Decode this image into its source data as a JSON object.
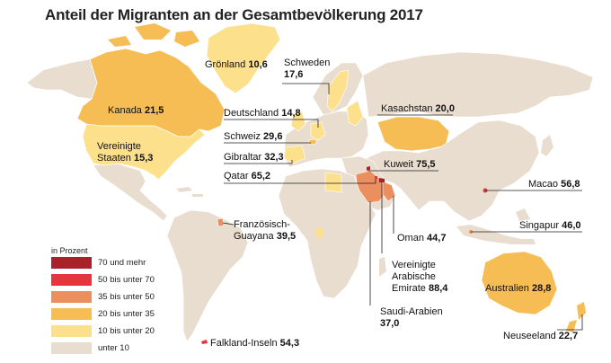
{
  "title": "Anteil der Migranten an der Gesamtbevölkerung 2017",
  "colors": {
    "ocean": "#ffffff",
    "c70": "#a9212b",
    "c50": "#e3363e",
    "c35": "#ec8f5e",
    "c20": "#f6bd55",
    "c10": "#fce08c",
    "c0": "#e9ddd0",
    "line": "#222222"
  },
  "legend": {
    "title": "in Prozent",
    "items": [
      {
        "label": "70 und mehr",
        "color": "#a9212b"
      },
      {
        "label": "50 bis unter 70",
        "color": "#e3363e"
      },
      {
        "label": "35 bis unter 50",
        "color": "#ec8f5e"
      },
      {
        "label": "20 bis unter 35",
        "color": "#f6bd55"
      },
      {
        "label": "10 bis unter 20",
        "color": "#fce08c"
      },
      {
        "label": "unter 10",
        "color": "#e9ddd0"
      }
    ]
  },
  "labels": {
    "groenland": {
      "name": "Grönland",
      "value": "10,6"
    },
    "schweden": {
      "name": "Schweden",
      "value": "17,6"
    },
    "kanada": {
      "name": "Kanada",
      "value": "21,5"
    },
    "deutschland": {
      "name": "Deutschland",
      "value": "14,8"
    },
    "kasachstan": {
      "name": "Kasachstan",
      "value": "20,0"
    },
    "schweiz": {
      "name": "Schweiz",
      "value": "29,6"
    },
    "usa": {
      "name1": "Vereinigte",
      "name2": "Staaten",
      "value": "15,3"
    },
    "gibraltar": {
      "name": "Gibraltar",
      "value": "32,3"
    },
    "kuweit": {
      "name": "Kuweit",
      "value": "75,5"
    },
    "qatar": {
      "name": "Qatar",
      "value": "65,2"
    },
    "macao": {
      "name": "Macao",
      "value": "56,8"
    },
    "franz_guayana": {
      "name1": "Französisch-",
      "name2": "Guayana",
      "value": "39,5"
    },
    "singapur": {
      "name": "Singapur",
      "value": "46,0"
    },
    "oman": {
      "name": "Oman",
      "value": "44,7"
    },
    "vae": {
      "name1": "Vereinigte",
      "name2": "Arabische",
      "name3": "Emirate",
      "value": "88,4"
    },
    "australien": {
      "name": "Australien",
      "value": "28,8"
    },
    "saudi": {
      "name": "Saudi-Arabien",
      "value": "37,0"
    },
    "neuseeland": {
      "name": "Neuseeland",
      "value": "22,7"
    },
    "falkland": {
      "name": "Falkland-Inseln",
      "value": "54,3"
    }
  }
}
